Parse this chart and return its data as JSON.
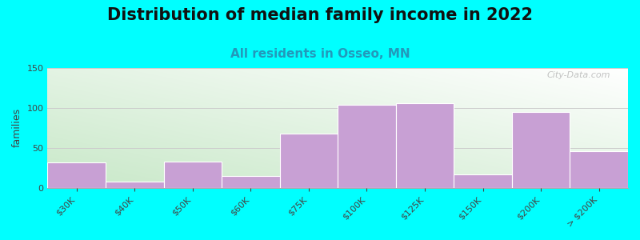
{
  "title": "Distribution of median family income in 2022",
  "subtitle": "All residents in Osseo, MN",
  "ylabel": "families",
  "categories": [
    "$30K",
    "$40K",
    "$50K",
    "$60K",
    "$75K",
    "$100K",
    "$125K",
    "$150K",
    "$200K",
    "> $200K"
  ],
  "values": [
    32,
    8,
    33,
    15,
    68,
    104,
    106,
    17,
    95,
    46
  ],
  "bar_color": "#c8a0d4",
  "background_color": "#00ffff",
  "title_fontsize": 15,
  "subtitle_fontsize": 11,
  "ylabel_fontsize": 9,
  "tick_fontsize": 8,
  "ylim": [
    0,
    150
  ],
  "yticks": [
    0,
    50,
    100,
    150
  ],
  "watermark": "City-Data.com",
  "grid_color": "#cccccc",
  "subtitle_color": "#2299bb",
  "grad_color_topleft": "#c8e8c8",
  "grad_color_bottomright": "#f0f8f0",
  "grad_color_white": "#ffffff"
}
